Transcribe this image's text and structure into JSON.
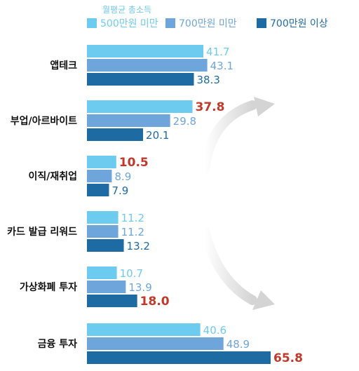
{
  "chart_data": {
    "type": "bar",
    "orientation": "horizontal",
    "legend_title": "월평균 총소득",
    "categories": [
      "앱테크",
      "부업/아르바이트",
      "이직/재취업",
      "카드 발급 리워드",
      "가상화폐 투자",
      "금융 투자"
    ],
    "series": [
      {
        "name": "500만원 미만",
        "color": "#6ecbf0",
        "label_color": "#6ecbf0",
        "values": [
          41.7,
          37.8,
          10.5,
          11.2,
          10.7,
          40.6
        ]
      },
      {
        "name": "700만원 미만",
        "color": "#6ea6dc",
        "label_color": "#6ea6dc",
        "values": [
          43.1,
          29.8,
          8.9,
          11.2,
          13.9,
          48.9
        ]
      },
      {
        "name": "700만원 이상",
        "color": "#1e6aa3",
        "label_color": "#1e6aa3",
        "values": [
          38.3,
          20.1,
          7.9,
          13.2,
          18.0,
          65.8
        ]
      }
    ],
    "highlight": [
      {
        "category": "부업/아르바이트",
        "series": "500만원 미만"
      },
      {
        "category": "이직/재취업",
        "series": "500만원 미만"
      },
      {
        "category": "가상화폐 투자",
        "series": "700만원 이상"
      },
      {
        "category": "금융 투자",
        "series": "700만원 이상"
      }
    ],
    "highlight_color": "#c0392b",
    "decoration": "curved gray arrows pointing right",
    "grid": false,
    "legend_position": "top"
  }
}
